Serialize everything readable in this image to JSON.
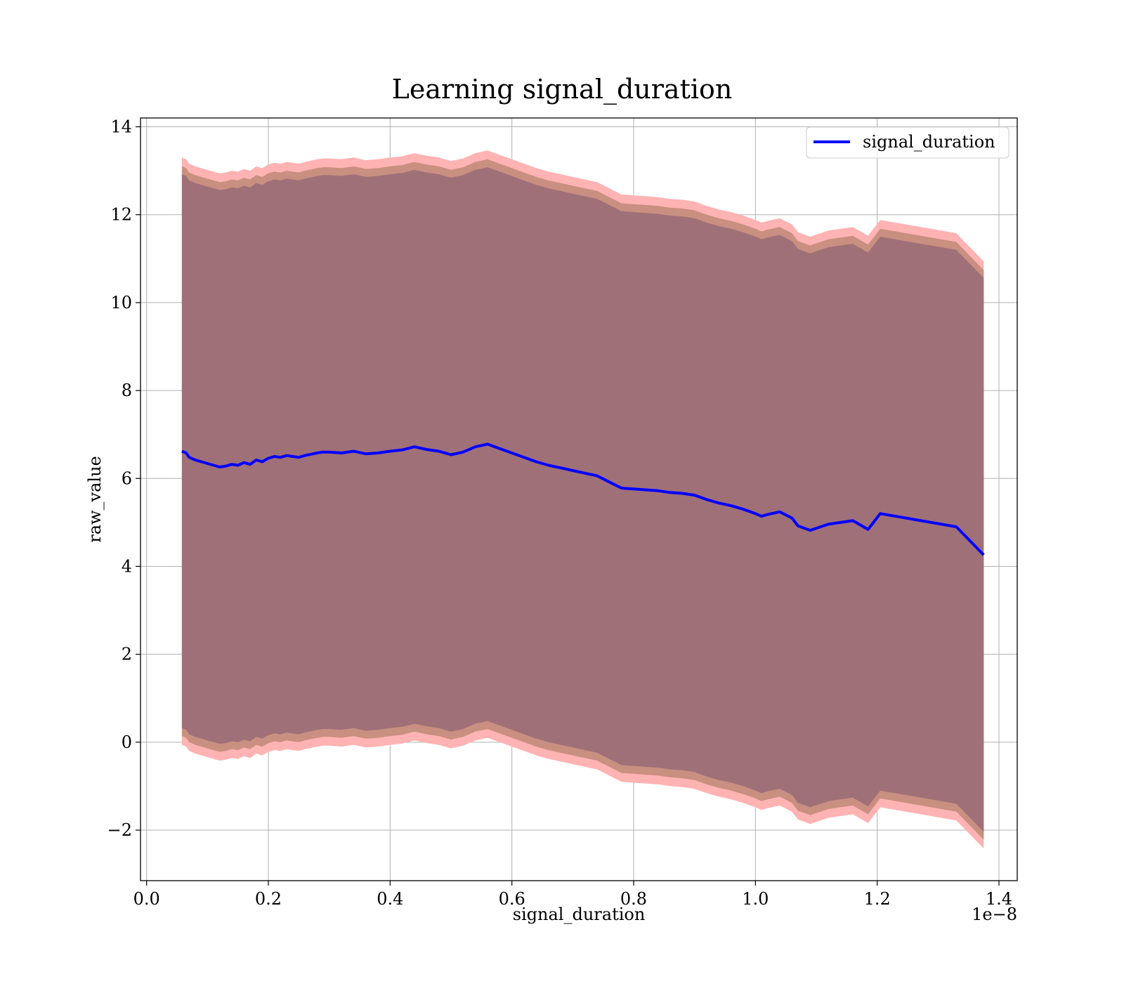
{
  "chart_data": {
    "type": "line",
    "title": "Learning signal_duration",
    "xlabel": "signal_duration",
    "ylabel": "raw_value",
    "x_offset_label": "1e−8",
    "xlim": [
      -0.01,
      1.43
    ],
    "ylim": [
      -3.15,
      14.2
    ],
    "x_ticks": [
      0.0,
      0.2,
      0.4,
      0.6,
      0.8,
      1.0,
      1.2,
      1.4
    ],
    "x_tick_labels": [
      "0.0",
      "0.2",
      "0.4",
      "0.6",
      "0.8",
      "1.0",
      "1.2",
      "1.4"
    ],
    "y_ticks": [
      -2,
      0,
      2,
      4,
      6,
      8,
      10,
      12,
      14
    ],
    "y_tick_labels": [
      "−2",
      "0",
      "2",
      "4",
      "6",
      "8",
      "10",
      "12",
      "14"
    ],
    "grid": true,
    "legend": {
      "position": "top-right",
      "entries": [
        "signal_duration"
      ]
    },
    "colors": {
      "line": "#0000ff",
      "band_outer": "#ffb3b3",
      "band_mid": "#c98f80",
      "band_inner": "#a07078",
      "grid": "#b0b0b0"
    },
    "series": [
      {
        "name": "signal_duration",
        "x": [
          0.058,
          0.065,
          0.07,
          0.08,
          0.09,
          0.1,
          0.11,
          0.12,
          0.13,
          0.14,
          0.15,
          0.16,
          0.17,
          0.18,
          0.19,
          0.2,
          0.21,
          0.22,
          0.23,
          0.24,
          0.25,
          0.26,
          0.27,
          0.28,
          0.29,
          0.3,
          0.32,
          0.34,
          0.36,
          0.38,
          0.4,
          0.42,
          0.44,
          0.46,
          0.48,
          0.5,
          0.52,
          0.54,
          0.56,
          0.58,
          0.6,
          0.62,
          0.64,
          0.66,
          0.68,
          0.7,
          0.72,
          0.74,
          0.76,
          0.78,
          0.8,
          0.82,
          0.84,
          0.86,
          0.88,
          0.9,
          0.92,
          0.94,
          0.96,
          0.98,
          1.0,
          1.01,
          1.02,
          1.04,
          1.06,
          1.07,
          1.09,
          1.12,
          1.16,
          1.185,
          1.205,
          1.33,
          1.375
        ],
        "y": [
          6.62,
          6.58,
          6.48,
          6.42,
          6.38,
          6.34,
          6.3,
          6.26,
          6.28,
          6.32,
          6.3,
          6.36,
          6.32,
          6.42,
          6.38,
          6.46,
          6.5,
          6.48,
          6.52,
          6.5,
          6.48,
          6.52,
          6.55,
          6.58,
          6.6,
          6.6,
          6.58,
          6.62,
          6.56,
          6.58,
          6.62,
          6.65,
          6.72,
          6.66,
          6.62,
          6.54,
          6.6,
          6.72,
          6.78,
          6.68,
          6.58,
          6.48,
          6.38,
          6.3,
          6.24,
          6.18,
          6.12,
          6.06,
          5.92,
          5.78,
          5.76,
          5.74,
          5.72,
          5.68,
          5.66,
          5.62,
          5.52,
          5.44,
          5.38,
          5.3,
          5.2,
          5.14,
          5.18,
          5.24,
          5.1,
          4.92,
          4.82,
          4.96,
          5.04,
          4.84,
          5.2,
          4.9,
          4.26
        ]
      }
    ],
    "bands": {
      "outer_half_width": 6.68,
      "mid_half_width": 6.48,
      "inner_half_width": 6.3
    }
  }
}
